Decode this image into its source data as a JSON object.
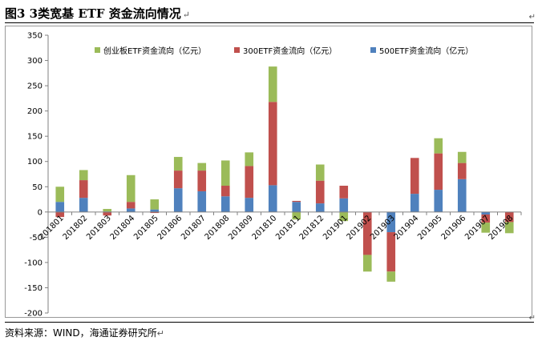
{
  "header": {
    "title": "图3  3类宽基 ETF 资金流向情况",
    "return_mark": "↵"
  },
  "footer": {
    "source": "资料来源：WIND，海通证券研究所",
    "return_mark": "↵"
  },
  "chart_data": {
    "type": "bar",
    "stacked": true,
    "categories": [
      "201801",
      "201802",
      "201803",
      "201804",
      "201805",
      "201806",
      "201807",
      "201808",
      "201809",
      "201810",
      "201811",
      "201812",
      "201901",
      "201902",
      "201903",
      "201904",
      "201905",
      "201906",
      "201907",
      "201908"
    ],
    "series": [
      {
        "name": "500ETF资金流向（亿元）",
        "color": "#4F81BD",
        "values": [
          20,
          28,
          1,
          7,
          5,
          47,
          41,
          31,
          28,
          53,
          20,
          17,
          27,
          0,
          -40,
          36,
          44,
          65,
          -5,
          0
        ]
      },
      {
        "name": "300ETF资金流向（亿元）",
        "color": "#C0504D",
        "values": [
          -10,
          35,
          -7,
          13,
          -2,
          35,
          41,
          21,
          63,
          165,
          2,
          45,
          25,
          -85,
          -78,
          71,
          72,
          32,
          -16,
          -20
        ]
      },
      {
        "name": "创业板ETF资金流向（亿元）",
        "color": "#9BBB59",
        "values": [
          30,
          20,
          5,
          53,
          20,
          27,
          15,
          50,
          27,
          70,
          -15,
          32,
          -18,
          -33,
          -20,
          0,
          30,
          22,
          -20,
          -22
        ]
      }
    ],
    "legend_order": [
      2,
      1,
      0
    ],
    "legend_placement": "top",
    "ylim": [
      -200,
      350
    ],
    "yticks": [
      -200,
      -150,
      -100,
      -50,
      0,
      50,
      100,
      150,
      200,
      250,
      300,
      350
    ],
    "grid": false
  }
}
